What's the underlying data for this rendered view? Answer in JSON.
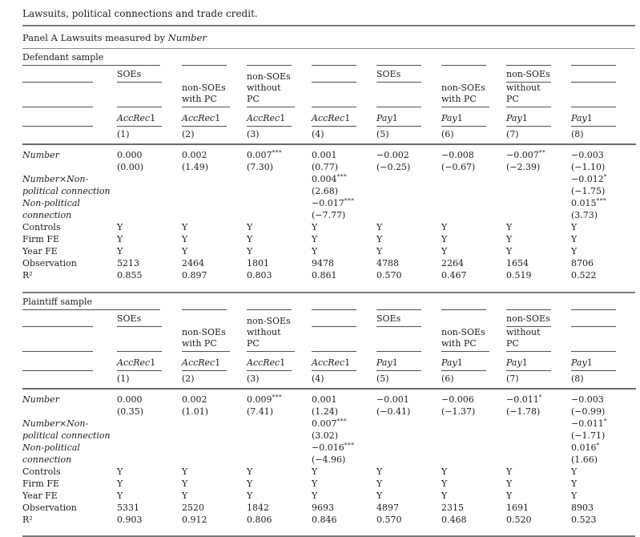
{
  "title": "Lawsuits, political connections and trade credit.",
  "panel_heading": {
    "prefix": "Panel A Lawsuits measured by ",
    "italic": "Number"
  },
  "header": {
    "group_cells": [
      {
        "l1": "SOEs",
        "l2": "",
        "merged": false
      },
      {
        "l1": "non-SOEs",
        "l2": "with PC",
        "merged": true
      },
      {
        "l1": "non-SOEs",
        "l2": "without PC",
        "merged": true
      },
      {
        "l1": "",
        "l2": "",
        "merged": false
      },
      {
        "l1": "SOEs",
        "l2": "",
        "merged": false
      },
      {
        "l1": "non-SOEs",
        "l2": "with PC",
        "merged": true
      },
      {
        "l1": "non-SOEs",
        "l2": "without PC",
        "merged": false
      },
      {
        "l1": "",
        "l2": "",
        "merged": false
      }
    ],
    "depvars": [
      {
        "it": "AccRec",
        "n": "1"
      },
      {
        "it": "AccRec",
        "n": "1"
      },
      {
        "it": "AccRec",
        "n": "1"
      },
      {
        "it": "AccRec",
        "n": "1"
      },
      {
        "it": "Pay",
        "n": "1"
      },
      {
        "it": "Pay",
        "n": "1"
      },
      {
        "it": "Pay",
        "n": "1"
      },
      {
        "it": "Pay",
        "n": "1"
      }
    ],
    "col_numbers": [
      "(1)",
      "(2)",
      "(3)",
      "(4)",
      "(5)",
      "(6)",
      "(7)",
      "(8)"
    ]
  },
  "panels": [
    {
      "sample_label": "Defendant sample",
      "rows": [
        {
          "label": "Number",
          "italic": true,
          "cells": [
            "0.000",
            "0.002",
            "0.007***",
            "0.001",
            "−0.002",
            "−0.008",
            "−0.007**",
            "−0.003"
          ]
        },
        {
          "label": "",
          "italic": false,
          "cells": [
            "(0.00)",
            "(1.49)",
            "(7.30)",
            "(0.77)",
            "(−0.25)",
            "(−0.67)",
            "(−2.39)",
            "(−1.10)"
          ]
        },
        {
          "label": "Number×Non-",
          "italic": true,
          "cells": [
            "",
            "",
            "",
            "0.004***",
            "",
            "",
            "",
            "−0.012*"
          ]
        },
        {
          "label": "political connection",
          "italic": true,
          "cells": [
            "",
            "",
            "",
            "(2.68)",
            "",
            "",
            "",
            "(−1.75)"
          ]
        },
        {
          "label": "Non-political",
          "italic": true,
          "cells": [
            "",
            "",
            "",
            "−0.017***",
            "",
            "",
            "",
            "0.015***"
          ]
        },
        {
          "label": "connection",
          "italic": true,
          "cells": [
            "",
            "",
            "",
            "(−7.77)",
            "",
            "",
            "",
            "(3.73)"
          ]
        },
        {
          "label": "Controls",
          "italic": false,
          "cells": [
            "Y",
            "Y",
            "Y",
            "Y",
            "Y",
            "Y",
            "Y",
            "Y"
          ]
        },
        {
          "label": "Firm FE",
          "italic": false,
          "cells": [
            "Y",
            "Y",
            "Y",
            "Y",
            "Y",
            "Y",
            "Y",
            "Y"
          ]
        },
        {
          "label": "Year FE",
          "italic": false,
          "cells": [
            "Y",
            "Y",
            "Y",
            "Y",
            "Y",
            "Y",
            "Y",
            "Y"
          ]
        },
        {
          "label": "Observation",
          "italic": false,
          "cells": [
            "5213",
            "2464",
            "1801",
            "9478",
            "4788",
            "2264",
            "1654",
            "8706"
          ]
        },
        {
          "label": "R²",
          "italic": false,
          "cells": [
            "0.855",
            "0.897",
            "0.803",
            "0.861",
            "0.570",
            "0.467",
            "0.519",
            "0.522"
          ]
        }
      ]
    },
    {
      "sample_label": "Plaintiff sample",
      "rows": [
        {
          "label": "Number",
          "italic": true,
          "cells": [
            "0.000",
            "0.002",
            "0.009***",
            "0.001",
            "−0.001",
            "−0.006",
            "−0.011*",
            "−0.003"
          ]
        },
        {
          "label": "",
          "italic": false,
          "cells": [
            "(0.35)",
            "(1.01)",
            "(7.41)",
            "(1.24)",
            "(−0.41)",
            "(−1.37)",
            "(−1.78)",
            "(−0.99)"
          ]
        },
        {
          "label": "Number×Non-",
          "italic": true,
          "cells": [
            "",
            "",
            "",
            "0.007***",
            "",
            "",
            "",
            "−0.011*"
          ]
        },
        {
          "label": "political connection",
          "italic": true,
          "cells": [
            "",
            "",
            "",
            "(3.02)",
            "",
            "",
            "",
            "(−1.71)"
          ]
        },
        {
          "label": "Non-political",
          "italic": true,
          "cells": [
            "",
            "",
            "",
            "−0.016***",
            "",
            "",
            "",
            "0.016*"
          ]
        },
        {
          "label": "connection",
          "italic": true,
          "cells": [
            "",
            "",
            "",
            "(−4.96)",
            "",
            "",
            "",
            "(1.66)"
          ]
        },
        {
          "label": "Controls",
          "italic": false,
          "cells": [
            "Y",
            "Y",
            "Y",
            "Y",
            "Y",
            "Y",
            "Y",
            "Y"
          ]
        },
        {
          "label": "Firm FE",
          "italic": false,
          "cells": [
            "Y",
            "Y",
            "Y",
            "Y",
            "Y",
            "Y",
            "Y",
            "Y"
          ]
        },
        {
          "label": "Year FE",
          "italic": false,
          "cells": [
            "Y",
            "Y",
            "Y",
            "Y",
            "Y",
            "Y",
            "Y",
            "Y"
          ]
        },
        {
          "label": "Observation",
          "italic": false,
          "cells": [
            "5331",
            "2520",
            "1842",
            "9693",
            "4897",
            "2315",
            "1691",
            "8903"
          ]
        },
        {
          "label": "R²",
          "italic": false,
          "cells": [
            "0.903",
            "0.912",
            "0.806",
            "0.846",
            "0.570",
            "0.468",
            "0.520",
            "0.523"
          ]
        }
      ]
    }
  ],
  "colors": {
    "rule_thick": "#7b7b7b",
    "rule_thin": "#8a8a8a",
    "cell_underline": "#4f4f4f",
    "header_separator": "#6a6a6a",
    "text": "#1c1c1c"
  }
}
